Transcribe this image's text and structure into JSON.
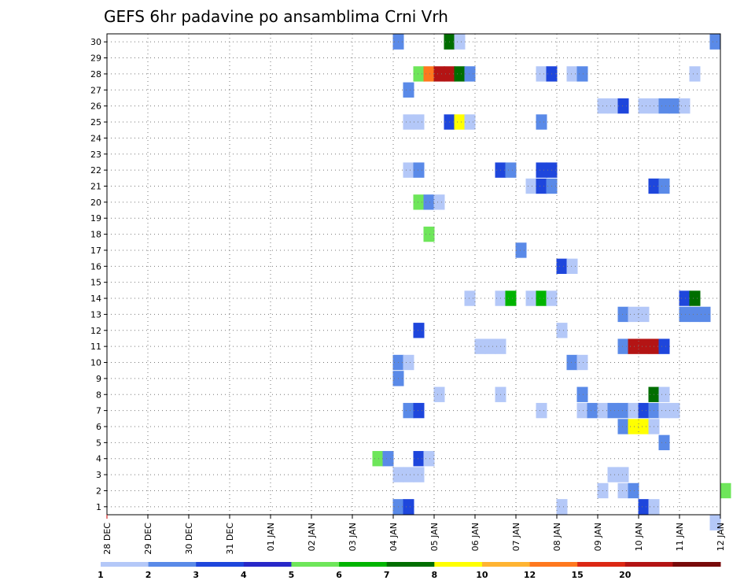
{
  "chart_data": {
    "type": "heatmap",
    "title": "GEFS 6hr padavine po ansamblima Crni Vrh",
    "x_ticks": [
      "28 DEC",
      "29 DEC",
      "30 DEC",
      "31 DEC",
      "01 JAN",
      "02 JAN",
      "03 JAN",
      "04 JAN",
      "05 JAN",
      "06 JAN",
      "07 JAN",
      "08 JAN",
      "09 JAN",
      "10 JAN",
      "11 JAN",
      "12 JAN"
    ],
    "y_ticks": [
      "1",
      "2",
      "3",
      "4",
      "5",
      "6",
      "7",
      "8",
      "9",
      "10",
      "11",
      "12",
      "13",
      "14",
      "15",
      "16",
      "17",
      "18",
      "19",
      "20",
      "21",
      "22",
      "23",
      "24",
      "25",
      "26",
      "27",
      "28",
      "29",
      "30"
    ],
    "x_unit": "6-hour step from 28 DEC 00",
    "xlim": [
      0,
      60
    ],
    "ylim": [
      0.5,
      30.5
    ],
    "grid": true,
    "colorbar": {
      "labels": [
        "1",
        "2",
        "3",
        "4",
        "5",
        "6",
        "7",
        "8",
        "10",
        "12",
        "15",
        "20"
      ],
      "colors": [
        "#b4c8f8",
        "#5a8ae8",
        "#1e46dc",
        "#2828c8",
        "#6ee65a",
        "#00b400",
        "#006e00",
        "#ffff00",
        "#ffb432",
        "#ff781e",
        "#dc2814",
        "#b41414",
        "#780a0a"
      ]
    },
    "cells": [
      [
        28,
        1,
        2
      ],
      [
        28,
        30,
        2
      ],
      [
        33,
        30,
        7
      ],
      [
        34,
        30,
        1
      ],
      [
        59,
        30,
        2
      ],
      [
        30,
        28,
        5
      ],
      [
        31,
        28,
        10
      ],
      [
        32,
        28,
        12
      ],
      [
        33,
        28,
        12
      ],
      [
        34,
        28,
        7
      ],
      [
        35,
        28,
        2
      ],
      [
        42,
        28,
        1
      ],
      [
        43,
        28,
        3
      ],
      [
        45,
        28,
        1
      ],
      [
        46,
        28,
        2
      ],
      [
        57,
        28,
        1
      ],
      [
        29,
        27,
        2
      ],
      [
        48,
        26,
        1
      ],
      [
        49,
        26,
        1
      ],
      [
        50,
        26,
        3
      ],
      [
        52,
        26,
        1
      ],
      [
        53,
        26,
        1
      ],
      [
        54,
        26,
        2
      ],
      [
        55,
        26,
        2
      ],
      [
        56,
        26,
        1
      ],
      [
        29,
        25,
        1
      ],
      [
        30,
        25,
        1
      ],
      [
        33,
        25,
        3
      ],
      [
        34,
        25,
        8
      ],
      [
        35,
        25,
        1
      ],
      [
        42,
        25,
        2
      ],
      [
        29,
        22,
        1
      ],
      [
        30,
        22,
        2
      ],
      [
        38,
        22,
        3
      ],
      [
        39,
        22,
        2
      ],
      [
        42,
        22,
        3
      ],
      [
        43,
        22,
        3
      ],
      [
        41,
        21,
        1
      ],
      [
        42,
        21,
        3
      ],
      [
        43,
        21,
        2
      ],
      [
        53,
        21,
        3
      ],
      [
        54,
        21,
        2
      ],
      [
        30,
        20,
        5
      ],
      [
        31,
        20,
        2
      ],
      [
        32,
        20,
        1
      ],
      [
        31,
        18,
        5
      ],
      [
        40,
        17,
        2
      ],
      [
        44,
        16,
        3
      ],
      [
        45,
        16,
        1
      ],
      [
        35,
        14,
        1
      ],
      [
        38,
        14,
        1
      ],
      [
        39,
        14,
        6
      ],
      [
        41,
        14,
        1
      ],
      [
        42,
        14,
        6
      ],
      [
        43,
        14,
        1
      ],
      [
        56,
        14,
        3
      ],
      [
        57,
        14,
        7
      ],
      [
        50,
        13,
        2
      ],
      [
        51,
        13,
        1
      ],
      [
        52,
        13,
        1
      ],
      [
        56,
        13,
        2
      ],
      [
        57,
        13,
        2
      ],
      [
        58,
        13,
        2
      ],
      [
        30,
        12,
        3
      ],
      [
        44,
        12,
        1
      ],
      [
        36,
        11,
        1
      ],
      [
        37,
        11,
        1
      ],
      [
        38,
        11,
        1
      ],
      [
        50,
        11,
        2
      ],
      [
        51,
        11,
        12
      ],
      [
        52,
        11,
        12
      ],
      [
        53,
        11,
        12
      ],
      [
        54,
        11,
        3
      ],
      [
        28,
        10,
        2
      ],
      [
        29,
        10,
        1
      ],
      [
        45,
        10,
        2
      ],
      [
        46,
        10,
        1
      ],
      [
        28,
        9,
        2
      ],
      [
        32,
        8,
        1
      ],
      [
        38,
        8,
        1
      ],
      [
        46,
        8,
        2
      ],
      [
        53,
        8,
        7
      ],
      [
        54,
        8,
        1
      ],
      [
        29,
        7,
        2
      ],
      [
        30,
        7,
        3
      ],
      [
        42,
        7,
        1
      ],
      [
        46,
        7,
        1
      ],
      [
        47,
        7,
        2
      ],
      [
        48,
        7,
        1
      ],
      [
        49,
        7,
        2
      ],
      [
        50,
        7,
        2
      ],
      [
        51,
        7,
        1
      ],
      [
        52,
        7,
        3
      ],
      [
        53,
        7,
        2
      ],
      [
        54,
        7,
        1
      ],
      [
        55,
        7,
        1
      ],
      [
        50,
        6,
        2
      ],
      [
        51,
        6,
        8
      ],
      [
        52,
        6,
        8
      ],
      [
        53,
        6,
        1
      ],
      [
        54,
        5,
        2
      ],
      [
        26,
        4,
        5
      ],
      [
        27,
        4,
        2
      ],
      [
        30,
        4,
        3
      ],
      [
        31,
        4,
        1
      ],
      [
        28,
        3,
        1
      ],
      [
        29,
        3,
        1
      ],
      [
        30,
        3,
        1
      ],
      [
        49,
        3,
        1
      ],
      [
        50,
        3,
        1
      ],
      [
        48,
        2,
        1
      ],
      [
        50,
        2,
        1
      ],
      [
        51,
        2,
        2
      ],
      [
        60,
        2,
        5
      ],
      [
        29,
        1,
        3
      ],
      [
        44,
        1,
        1
      ],
      [
        52,
        1,
        3
      ],
      [
        53,
        1,
        1
      ],
      [
        59,
        0,
        1
      ]
    ]
  }
}
